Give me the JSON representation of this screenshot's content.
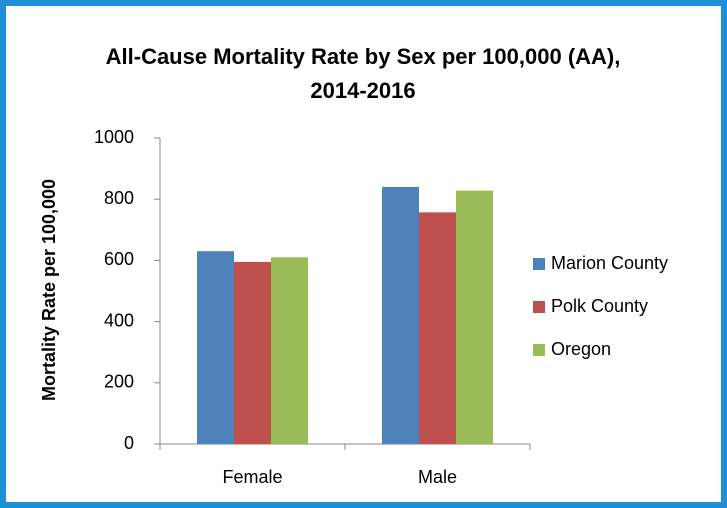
{
  "chart_data": {
    "type": "bar",
    "title": "All-Cause Mortality Rate by Sex per 100,000 (AA), 2014-2016",
    "y_label": "Mortality Rate per 100,000",
    "categories": [
      "Female",
      "Male"
    ],
    "series": [
      {
        "name": "Marion County",
        "color": "#4f81bd",
        "values": [
          630,
          840
        ]
      },
      {
        "name": "Polk County",
        "color": "#c0504d",
        "values": [
          595,
          757
        ]
      },
      {
        "name": "Oregon",
        "color": "#9bbb59",
        "values": [
          610,
          828
        ]
      }
    ],
    "ylim": [
      0,
      1000
    ],
    "yticks": [
      0,
      200,
      400,
      600,
      800,
      1000
    ],
    "legend": "right",
    "grid": false
  }
}
